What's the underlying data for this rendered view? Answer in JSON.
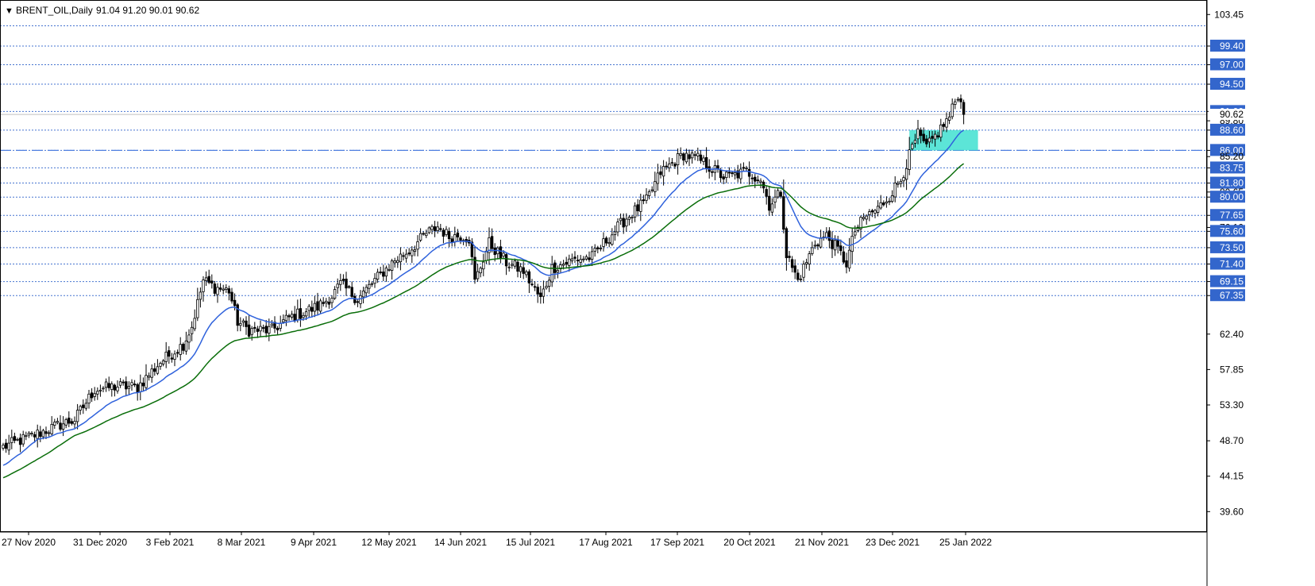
{
  "header": {
    "symbol_timeframe": "BRENT_OIL,Daily",
    "ohlc": "91.04 91.20 90.01 90.62"
  },
  "chart_data": {
    "type": "candlestick",
    "symbol": "BRENT_OIL",
    "timeframe": "Daily",
    "ylim": [
      38.0,
      104.6
    ],
    "y_ticks": [
      103.45,
      99.4,
      97.0,
      94.5,
      91.0,
      89.8,
      88.6,
      86.0,
      85.2,
      83.75,
      81.8,
      80.65,
      80.0,
      77.65,
      76.1,
      75.6,
      73.5,
      71.4,
      69.15,
      67.35,
      62.4,
      57.85,
      53.3,
      48.7,
      44.15,
      39.6
    ],
    "x_tick_labels": [
      "27 Nov 2020",
      "31 Dec 2020",
      "3 Feb 2021",
      "8 Mar 2021",
      "9 Apr 2021",
      "12 May 2021",
      "14 Jun 2021",
      "15 Jul 2021",
      "17 Aug 2021",
      "17 Sep 2021",
      "20 Oct 2021",
      "21 Nov 2021",
      "23 Dec 2021",
      "25 Jan 2022"
    ],
    "horizontal_levels": [
      102.0,
      99.4,
      97.0,
      94.5,
      91.0,
      88.6,
      86.0,
      83.75,
      81.8,
      80.0,
      77.65,
      75.6,
      73.5,
      71.4,
      69.15,
      67.35
    ],
    "highlighted_levels": [
      102.0,
      99.4,
      97.0,
      94.5,
      91.0,
      88.6,
      86.0,
      83.75,
      81.8,
      80.0,
      77.65,
      75.6,
      73.5,
      71.4,
      69.15,
      67.35
    ],
    "key_level": 86.0,
    "current_price": 90.62,
    "zone": {
      "from": 86.0,
      "to": 88.6,
      "color": "#40e0d0"
    },
    "close_anchors": [
      {
        "i": 0,
        "v": 47.9
      },
      {
        "i": 10,
        "v": 49.3
      },
      {
        "i": 20,
        "v": 50.8
      },
      {
        "i": 25,
        "v": 51.4
      },
      {
        "i": 32,
        "v": 55.3
      },
      {
        "i": 40,
        "v": 55.7
      },
      {
        "i": 47,
        "v": 55.6
      },
      {
        "i": 55,
        "v": 58.8
      },
      {
        "i": 63,
        "v": 61.1
      },
      {
        "i": 66,
        "v": 63.4
      },
      {
        "i": 70,
        "v": 69.3
      },
      {
        "i": 74,
        "v": 68.4
      },
      {
        "i": 79,
        "v": 68.0
      },
      {
        "i": 82,
        "v": 64.0
      },
      {
        "i": 86,
        "v": 62.9
      },
      {
        "i": 94,
        "v": 62.9
      },
      {
        "i": 100,
        "v": 64.5
      },
      {
        "i": 110,
        "v": 65.9
      },
      {
        "i": 115,
        "v": 67.3
      },
      {
        "i": 118,
        "v": 68.8
      },
      {
        "i": 124,
        "v": 66.9
      },
      {
        "i": 130,
        "v": 69.3
      },
      {
        "i": 137,
        "v": 71.9
      },
      {
        "i": 142,
        "v": 73.1
      },
      {
        "i": 148,
        "v": 75.3
      },
      {
        "i": 152,
        "v": 76.2
      },
      {
        "i": 156,
        "v": 74.9
      },
      {
        "i": 160,
        "v": 75.1
      },
      {
        "i": 163,
        "v": 74.7
      },
      {
        "i": 165,
        "v": 69.1
      },
      {
        "i": 170,
        "v": 74.1
      },
      {
        "i": 176,
        "v": 71.6
      },
      {
        "i": 182,
        "v": 70.5
      },
      {
        "i": 188,
        "v": 66.9
      },
      {
        "i": 192,
        "v": 70.9
      },
      {
        "i": 200,
        "v": 72.0
      },
      {
        "i": 206,
        "v": 72.3
      },
      {
        "i": 212,
        "v": 74.9
      },
      {
        "i": 218,
        "v": 77.3
      },
      {
        "i": 225,
        "v": 79.5
      },
      {
        "i": 230,
        "v": 83.2
      },
      {
        "i": 238,
        "v": 85.5
      },
      {
        "i": 243,
        "v": 84.9
      },
      {
        "i": 247,
        "v": 83.9
      },
      {
        "i": 252,
        "v": 82.6
      },
      {
        "i": 255,
        "v": 82.7
      },
      {
        "i": 260,
        "v": 83.3
      },
      {
        "i": 265,
        "v": 82.3
      },
      {
        "i": 268,
        "v": 79.0
      },
      {
        "i": 272,
        "v": 80.6
      },
      {
        "i": 274,
        "v": 72.6
      },
      {
        "i": 278,
        "v": 69.3
      },
      {
        "i": 281,
        "v": 71.7
      },
      {
        "i": 284,
        "v": 74.1
      },
      {
        "i": 288,
        "v": 75.0
      },
      {
        "i": 292,
        "v": 73.2
      },
      {
        "i": 295,
        "v": 71.5
      },
      {
        "i": 298,
        "v": 75.7
      },
      {
        "i": 302,
        "v": 77.6
      },
      {
        "i": 306,
        "v": 78.5
      },
      {
        "i": 310,
        "v": 80.2
      },
      {
        "i": 314,
        "v": 82.3
      },
      {
        "i": 318,
        "v": 86.3
      },
      {
        "i": 320,
        "v": 88.0
      },
      {
        "i": 323,
        "v": 86.3
      },
      {
        "i": 327,
        "v": 88.3
      },
      {
        "i": 331,
        "v": 90.3
      },
      {
        "i": 334,
        "v": 93.3
      },
      {
        "i": 336,
        "v": 90.62
      }
    ],
    "series": [
      {
        "name": "",
        "color": "#2f62dc"
      },
      {
        "name": "",
        "color": "#0a6e0a"
      }
    ],
    "grid": false,
    "background": "#ffffff",
    "bull_color": "#000000",
    "bear_color": "#000000",
    "level_color": "#3366cc",
    "label_bg": "#3366cc",
    "label_text_color": "#ffffff"
  }
}
